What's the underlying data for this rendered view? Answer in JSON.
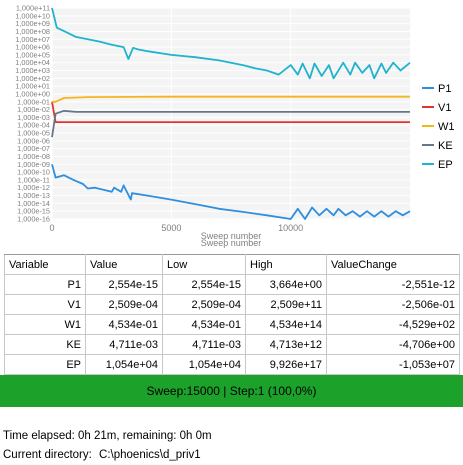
{
  "chart": {
    "y_tick_labels": [
      "1,000e+11",
      "1,000e+10",
      "1,000e+09",
      "1,000e+08",
      "1,000e+07",
      "1,000e+06",
      "1,000e+05",
      "1,000e+04",
      "1,000e+03",
      "1,000e+02",
      "1,000e+01",
      "1,000e+00",
      "1,000e-01",
      "1,000e-02",
      "1,000e-03",
      "1,000e-04",
      "1,000e-05",
      "1,000e-06",
      "1,000e-07",
      "1,000e-08",
      "1,000e-09",
      "1,000e-10",
      "1,000e-11",
      "1,000e-12",
      "1,000e-13",
      "1,000e-14",
      "1,000e-15",
      "1,000e-16"
    ],
    "x_tick_labels": [
      "0",
      "5000",
      "10000"
    ],
    "x_label": "Sweep number",
    "legend": [
      {
        "name": "P1",
        "color": "#2e8fe0"
      },
      {
        "name": "V1",
        "color": "#e3342f"
      },
      {
        "name": "W1",
        "color": "#f5b51e"
      },
      {
        "name": "KE",
        "color": "#667788"
      },
      {
        "name": "EP",
        "color": "#1fb3cf"
      }
    ]
  },
  "chart_data": {
    "type": "line",
    "xlabel": "Sweep number",
    "x_ticks": [
      0,
      5000,
      10000
    ],
    "xlim": [
      0,
      15000
    ],
    "yscale": "log",
    "ylim": [
      1e-16,
      100000000000.0
    ],
    "grid": true,
    "legend_position": "right",
    "series": [
      {
        "name": "P1",
        "color": "#2e8fe0",
        "x": [
          0,
          150,
          500,
          900,
          1300,
          1500,
          1800,
          2500,
          2600,
          2900,
          3000,
          3300,
          3350,
          4000,
          5000,
          6000,
          7000,
          8000,
          9000,
          10000,
          10300,
          10600,
          10900,
          11200,
          11500,
          11800,
          12000,
          12300,
          12600,
          12900,
          13200,
          13500,
          13800,
          14100,
          14400,
          14700,
          15000
        ],
        "y": [
          1e-09,
          2e-11,
          4e-11,
          1e-11,
          3e-12,
          8e-13,
          1e-12,
          3e-13,
          1e-12,
          3e-13,
          2e-12,
          3e-14,
          2e-13,
          1e-13,
          3e-14,
          8e-15,
          2e-15,
          8e-16,
          3e-16,
          1e-16,
          2e-15,
          1e-16,
          3e-15,
          3e-16,
          2e-15,
          3e-16,
          2e-15,
          3e-16,
          1e-15,
          2e-16,
          1e-15,
          2e-16,
          1e-15,
          2e-16,
          1e-15,
          3e-16,
          1e-15
        ]
      },
      {
        "name": "V1",
        "color": "#e3342f",
        "x": [
          0,
          150,
          1000,
          5000,
          10000,
          15000
        ],
        "y": [
          0.1,
          0.00025,
          0.00025,
          0.00025,
          0.00025,
          0.00025
        ]
      },
      {
        "name": "W1",
        "color": "#f5b51e",
        "x": [
          0,
          150,
          500,
          1500,
          5000,
          10000,
          15000
        ],
        "y": [
          0.1,
          0.1,
          0.3,
          0.4,
          0.45,
          0.45,
          0.45
        ]
      },
      {
        "name": "KE",
        "color": "#667788",
        "x": [
          0,
          150,
          500,
          1000,
          5000,
          10000,
          15000
        ],
        "y": [
          3e-06,
          0.003,
          0.007,
          0.005,
          0.005,
          0.005,
          0.005
        ]
      },
      {
        "name": "EP",
        "color": "#1fb3cf",
        "x": [
          0,
          200,
          600,
          1000,
          1500,
          2000,
          2500,
          3000,
          3200,
          3400,
          3600,
          4000,
          5000,
          6000,
          7000,
          8000,
          8500,
          9000,
          9500,
          10000,
          10300,
          10500,
          10800,
          11000,
          11300,
          11600,
          11800,
          12200,
          12500,
          12700,
          13000,
          13300,
          13500,
          13800,
          14000,
          14300,
          14600,
          15000
        ],
        "y": [
          100000000000.0,
          300000000.0,
          80000000.0,
          20000000.0,
          10000000.0,
          5000000.0,
          2000000.0,
          1000000.0,
          30000.0,
          800000.0,
          500000.0,
          300000.0,
          100000.0,
          50000.0,
          20000.0,
          5000.0,
          2000.0,
          1000.0,
          300.0,
          5000.0,
          300.0,
          8000.0,
          100.0,
          8000.0,
          200.0,
          5000.0,
          100.0,
          10000.0,
          300.0,
          10000.0,
          500.0,
          5000.0,
          100.0,
          8000.0,
          500.0,
          10000.0,
          1000.0,
          10000.0
        ]
      }
    ]
  },
  "table": {
    "headers": [
      "Variable",
      "Value",
      "Low",
      "High",
      "ValueChange"
    ],
    "rows": [
      [
        "P1",
        "2,554e-15",
        "2,554e-15",
        "3,664e+00",
        "-2,551e-12"
      ],
      [
        "V1",
        "2,509e-04",
        "2,509e-04",
        "2,509e+11",
        "-2,506e-01"
      ],
      [
        "W1",
        "4,534e-01",
        "4,534e-01",
        "4,534e+14",
        "-4,529e+02"
      ],
      [
        "KE",
        "4,711e-03",
        "4,711e-03",
        "4,713e+12",
        "-4,706e+00"
      ],
      [
        "EP",
        "1,054e+04",
        "1,054e+04",
        "9,926e+17",
        "-1,053e+07"
      ]
    ]
  },
  "progress": {
    "text": "Sweep:15000 | Step:1  (100,0%)",
    "fraction": 1.0,
    "color": "#1ca22a"
  },
  "time_elapsed": "Time elapsed: 0h 21m, remaining: 0h 0m",
  "current_directory_label": "Current directory:",
  "current_directory_value": "C:\\phoenics\\d_priv1"
}
